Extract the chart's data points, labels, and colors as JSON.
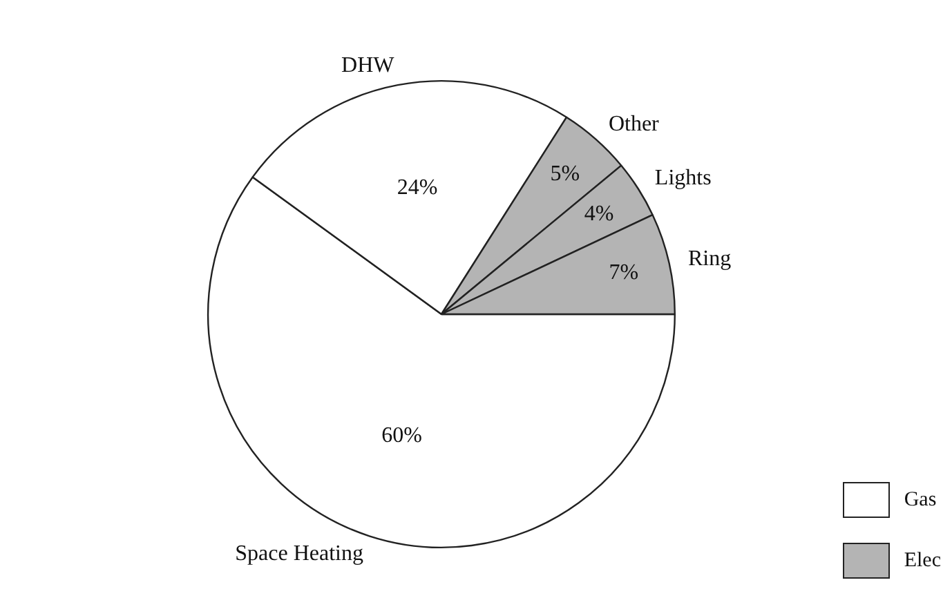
{
  "chart_data": {
    "type": "pie",
    "categories": [
      "Space Heating",
      "DHW",
      "Other",
      "Lights",
      "Ring"
    ],
    "values": [
      60,
      24,
      5,
      4,
      7
    ],
    "colors": [
      "#ffffff",
      "#ffffff",
      "#b4b4b4",
      "#b4b4b4",
      "#b4b4b4"
    ],
    "value_labels": [
      "60%",
      "24%",
      "5%",
      "4%",
      "7%"
    ],
    "annotations": [
      "Gas",
      "Elec"
    ]
  }
}
